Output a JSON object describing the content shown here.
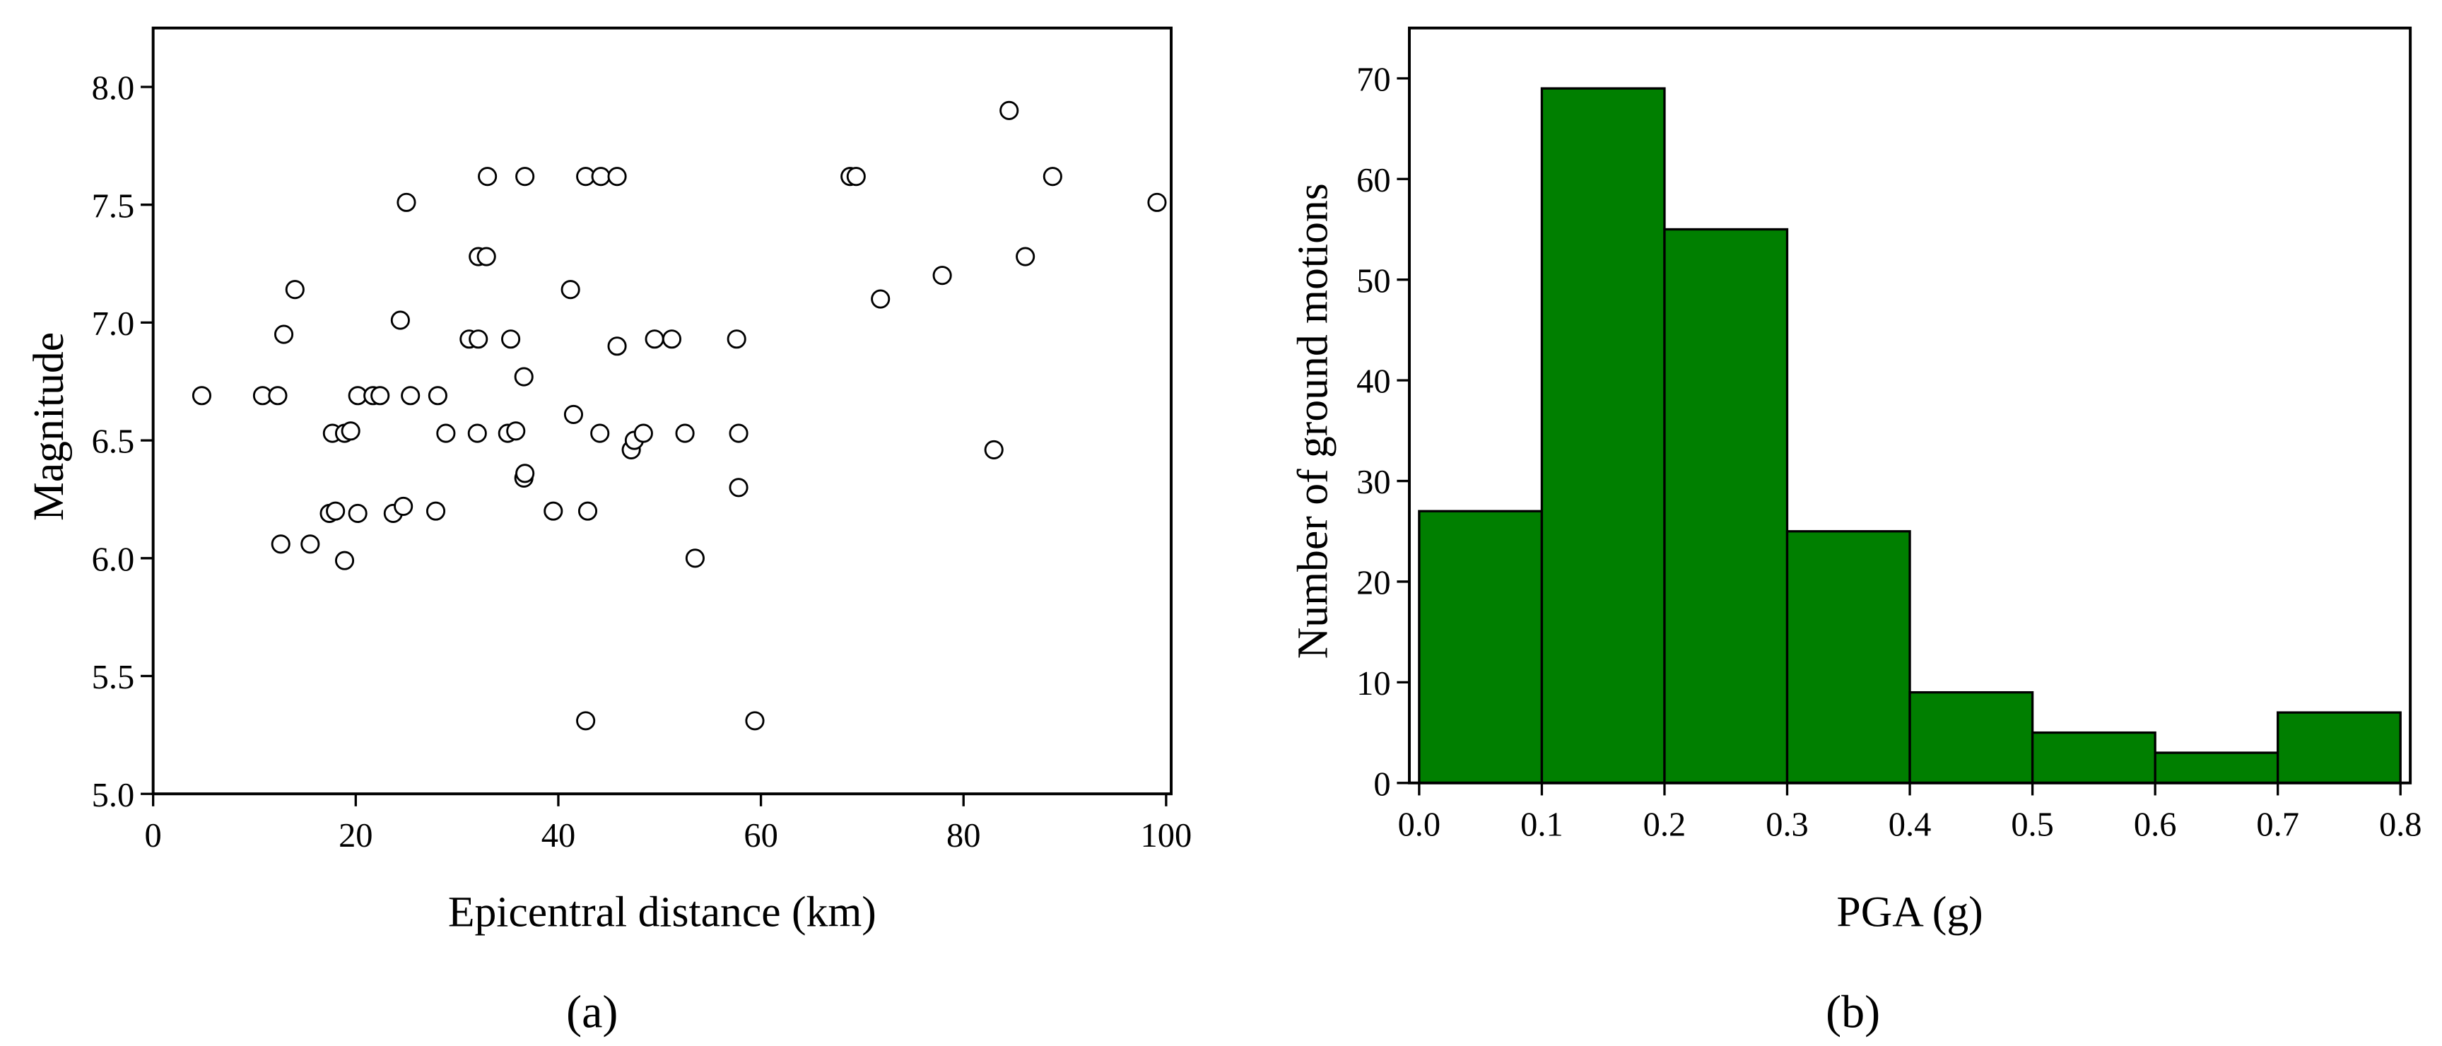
{
  "chart_data": [
    {
      "type": "scatter",
      "x_label": "Epicentral distance (km)",
      "y_label": "Magnitude",
      "caption": "(a)",
      "color": "#000000",
      "x": [
        4.8,
        10.8,
        12.3,
        12.9,
        14.0,
        12.6,
        15.5,
        17.7,
        18.9,
        19.5,
        17.4,
        18.0,
        18.9,
        20.2,
        21.7,
        22.4,
        20.2,
        24.4,
        25.0,
        25.4,
        23.7,
        24.7,
        28.1,
        27.9,
        28.9,
        31.2,
        32.1,
        32.1,
        32.9,
        33.0,
        32.0,
        35.3,
        35.0,
        35.8,
        36.6,
        36.7,
        36.6,
        36.7,
        39.5,
        41.2,
        41.5,
        42.7,
        44.2,
        45.8,
        42.9,
        42.7,
        44.1,
        45.8,
        47.2,
        47.5,
        48.4,
        49.5,
        51.2,
        52.5,
        53.5,
        57.6,
        57.8,
        57.8,
        59.4,
        68.8,
        69.4,
        71.8,
        77.9,
        83.0,
        84.5,
        86.1,
        88.8,
        99.1
      ],
      "values": [
        6.69,
        6.69,
        6.69,
        6.95,
        7.14,
        6.06,
        6.06,
        6.53,
        6.53,
        6.54,
        6.19,
        6.2,
        5.99,
        6.69,
        6.69,
        6.69,
        6.19,
        7.01,
        7.51,
        6.69,
        6.19,
        6.22,
        6.69,
        6.2,
        6.53,
        6.93,
        6.93,
        7.28,
        7.28,
        7.62,
        6.53,
        6.93,
        6.53,
        6.54,
        6.77,
        7.62,
        6.34,
        6.36,
        6.2,
        7.14,
        6.61,
        7.62,
        7.62,
        7.62,
        6.2,
        5.31,
        6.53,
        6.9,
        6.46,
        6.5,
        6.53,
        6.93,
        6.93,
        6.53,
        6.0,
        6.93,
        6.53,
        6.3,
        5.31,
        7.62,
        7.62,
        7.1,
        7.2,
        6.46,
        7.9,
        7.28,
        7.62,
        7.51
      ],
      "xlim": [
        0,
        100.5
      ],
      "ylim": [
        5,
        8.25
      ],
      "xticks": [
        0,
        20,
        40,
        60,
        80,
        100
      ],
      "yticks": [
        {
          "value": 5,
          "label": "5.0"
        },
        5.5,
        {
          "value": 6,
          "label": "6.0"
        },
        6.5,
        {
          "value": 7,
          "label": "7.0"
        },
        7.5,
        {
          "value": 8,
          "label": "8.0"
        }
      ]
    },
    {
      "type": "histogram",
      "x_label": "PGA (g)",
      "y_label": "Number of ground motions",
      "caption": "(b)",
      "color": "#007f00",
      "bins": [
        0,
        0.1,
        0.2,
        0.3,
        0.4,
        0.5,
        0.6,
        0.7,
        0.8
      ],
      "values": [
        27,
        69,
        55,
        25,
        9,
        5,
        3,
        7
      ],
      "xlim": [
        -0.008,
        0.808
      ],
      "ylim": [
        0,
        75
      ],
      "xticks": [
        {
          "value": 0,
          "label": "0.0"
        },
        0.1,
        0.2,
        0.3,
        0.4,
        0.5,
        0.6,
        0.7,
        0.8
      ],
      "yticks": [
        0,
        10,
        20,
        30,
        40,
        50,
        60,
        70
      ]
    }
  ]
}
